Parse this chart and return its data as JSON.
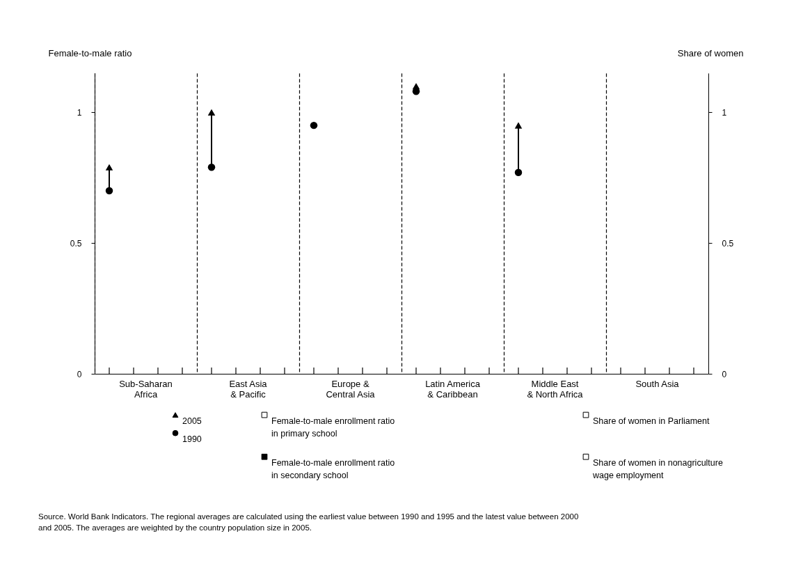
{
  "chart_data": {
    "type": "scatter",
    "ylabel": "Female-to-male ratio",
    "y2label": "Share of women",
    "categories": [
      "Sub-Saharan\nAfrica",
      "East Asia\n& Pacific",
      "Europe &\nCentral Asia",
      "Latin America\n& Caribbean",
      "Middle East\n& North Africa",
      "South Asia"
    ],
    "series": [
      {
        "name": "2005",
        "color": "#000000",
        "marker": "triangle",
        "values": [
          0.79,
          1.0,
          null,
          1.1,
          0.95,
          null
        ]
      },
      {
        "name": "1990",
        "color": "#000000",
        "marker": "circle",
        "values": [
          0.7,
          0.79,
          0.95,
          1.08,
          0.77,
          null
        ]
      },
      {
        "name": "Female-to-male enrollment ratio in primary school",
        "color": "#ffffff",
        "marker": "square",
        "values": [
          null,
          null,
          null,
          null,
          null,
          null
        ]
      },
      {
        "name": "Female-to-male enrollment ratio in secondary school",
        "color": "#000000",
        "marker": "square",
        "values": [
          null,
          null,
          null,
          null,
          null,
          null
        ]
      },
      {
        "name": "Share of women in Parliament",
        "color": "#ffffff",
        "marker": "square",
        "values": [
          null,
          null,
          null,
          null,
          null,
          null
        ]
      },
      {
        "name": "Share of women in nonagriculture wage employment",
        "color": "#ffffff",
        "marker": "square",
        "values": [
          null,
          null,
          null,
          null,
          null,
          null
        ]
      }
    ],
    "ylim": [
      0,
      1.15
    ],
    "yticks": [
      0,
      0.5,
      1
    ],
    "y2lim": [
      0,
      1.15
    ],
    "y2ticks": [
      0,
      0.5,
      1
    ],
    "grid": "x",
    "legend": "bottom",
    "annotations": [
      "Source. World Bank Indicators. The regional averages are calculated using the earliest value between 1990 and 1995 and the latest value between 2000 and 2005. The averages are weighted by the country population size in 2005."
    ]
  }
}
